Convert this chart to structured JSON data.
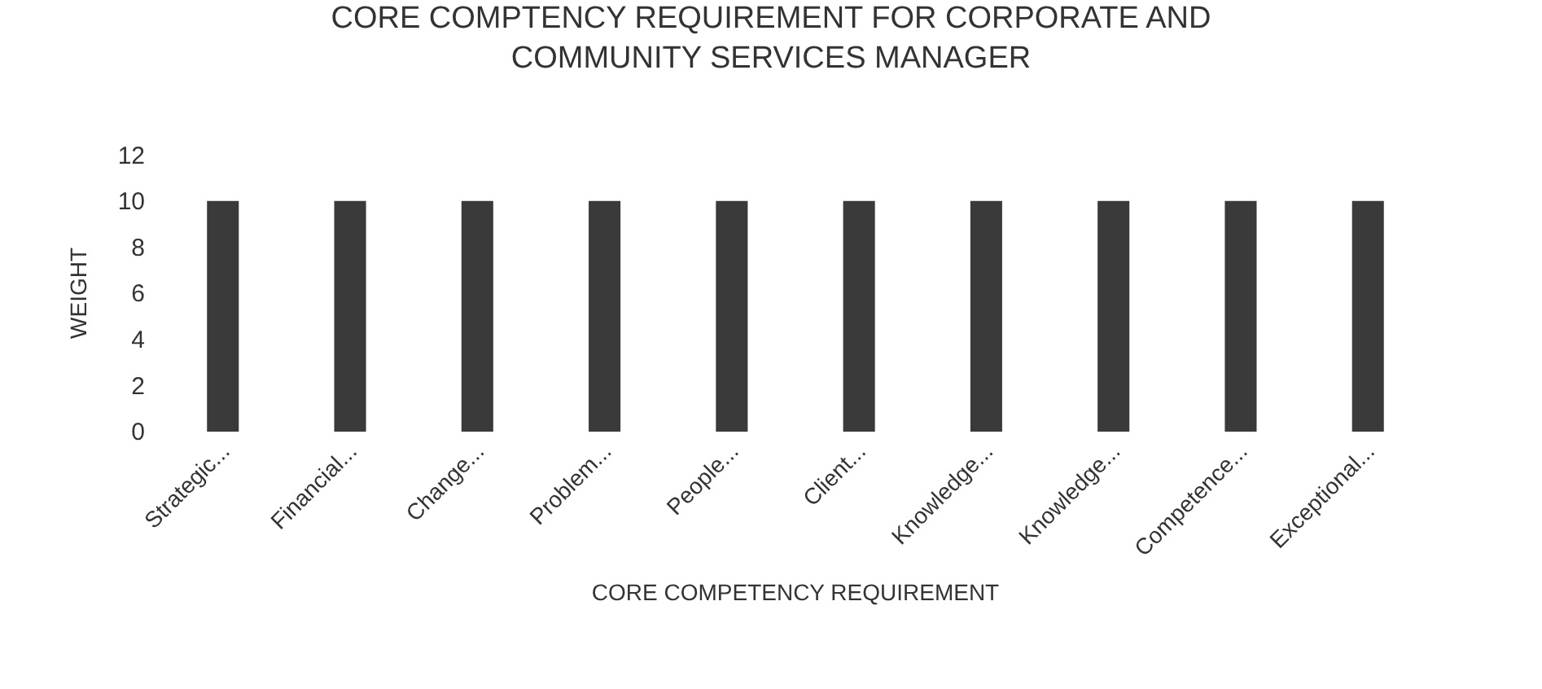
{
  "chart_data": {
    "type": "bar",
    "title": "CORE COMPTENCY REQUIREMENT FOR CORPORATE AND COMMUNITY SERVICES MANAGER",
    "xlabel": "CORE COMPETENCY REQUIREMENT",
    "ylabel": "WEIGHT",
    "categories": [
      "Strategic...",
      "Financial...",
      "Change...",
      "Problem...",
      "People...",
      "Client...",
      "Knowledge...",
      "Knowledge...",
      "Competence...",
      "Exceptional..."
    ],
    "values": [
      10,
      10,
      10,
      10,
      10,
      10,
      10,
      10,
      10,
      10
    ],
    "color": "#3a3a3a",
    "ylim": [
      0,
      12
    ],
    "yticks": [
      0,
      2,
      4,
      6,
      8,
      10,
      12
    ]
  }
}
